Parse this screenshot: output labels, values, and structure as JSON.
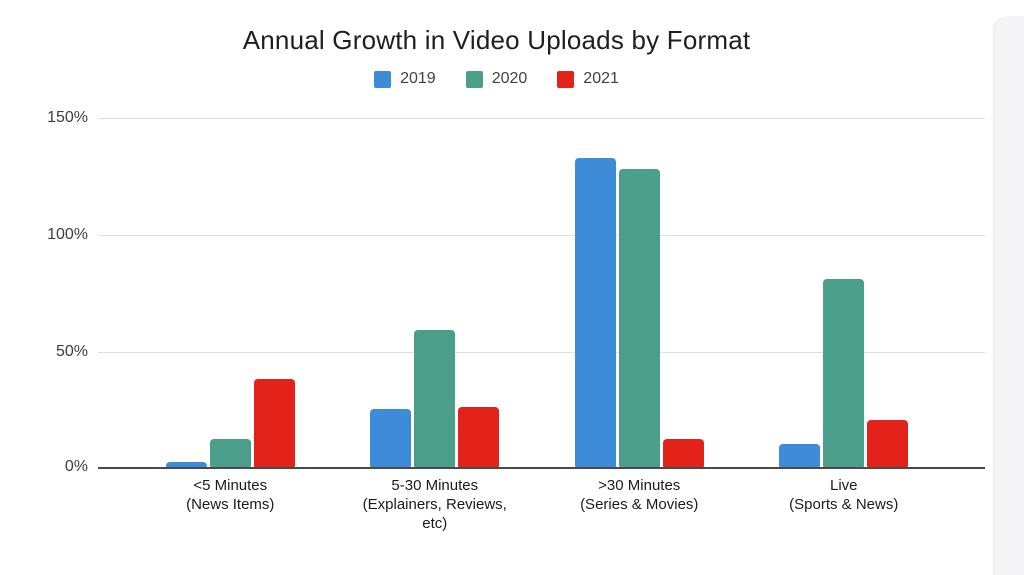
{
  "page": {
    "background": "#ffffff",
    "side_panel_color": "#f5f5f7",
    "gridline_color": "#dedede",
    "axis_line_color": "#4a4a4a",
    "title_color": "#1f1f1f",
    "tick_color": "#3d3d3d",
    "legend_text_color": "#424242"
  },
  "chart_data": {
    "type": "bar",
    "title": "Annual Growth in Video Uploads by Format",
    "categories": [
      "<5 Minutes\n(News Items)",
      "5-30 Minutes\n(Explainers, Reviews,\netc)",
      ">30 Minutes\n(Series & Movies)",
      "Live\n(Sports & News)"
    ],
    "series": [
      {
        "name": "2019",
        "color": "#3E8BD8",
        "values": [
          2,
          25,
          133,
          10
        ]
      },
      {
        "name": "2020",
        "color": "#4A9E8A",
        "values": [
          12,
          59,
          128,
          81
        ]
      },
      {
        "name": "2021",
        "color": "#E3231A",
        "values": [
          38,
          26,
          12,
          20
        ]
      }
    ],
    "xlabel": "",
    "ylabel": "",
    "y_ticks": [
      "0%",
      "50%",
      "100%",
      "150%"
    ],
    "ylim": [
      0,
      150
    ],
    "grid": true,
    "legend_position": "top"
  }
}
